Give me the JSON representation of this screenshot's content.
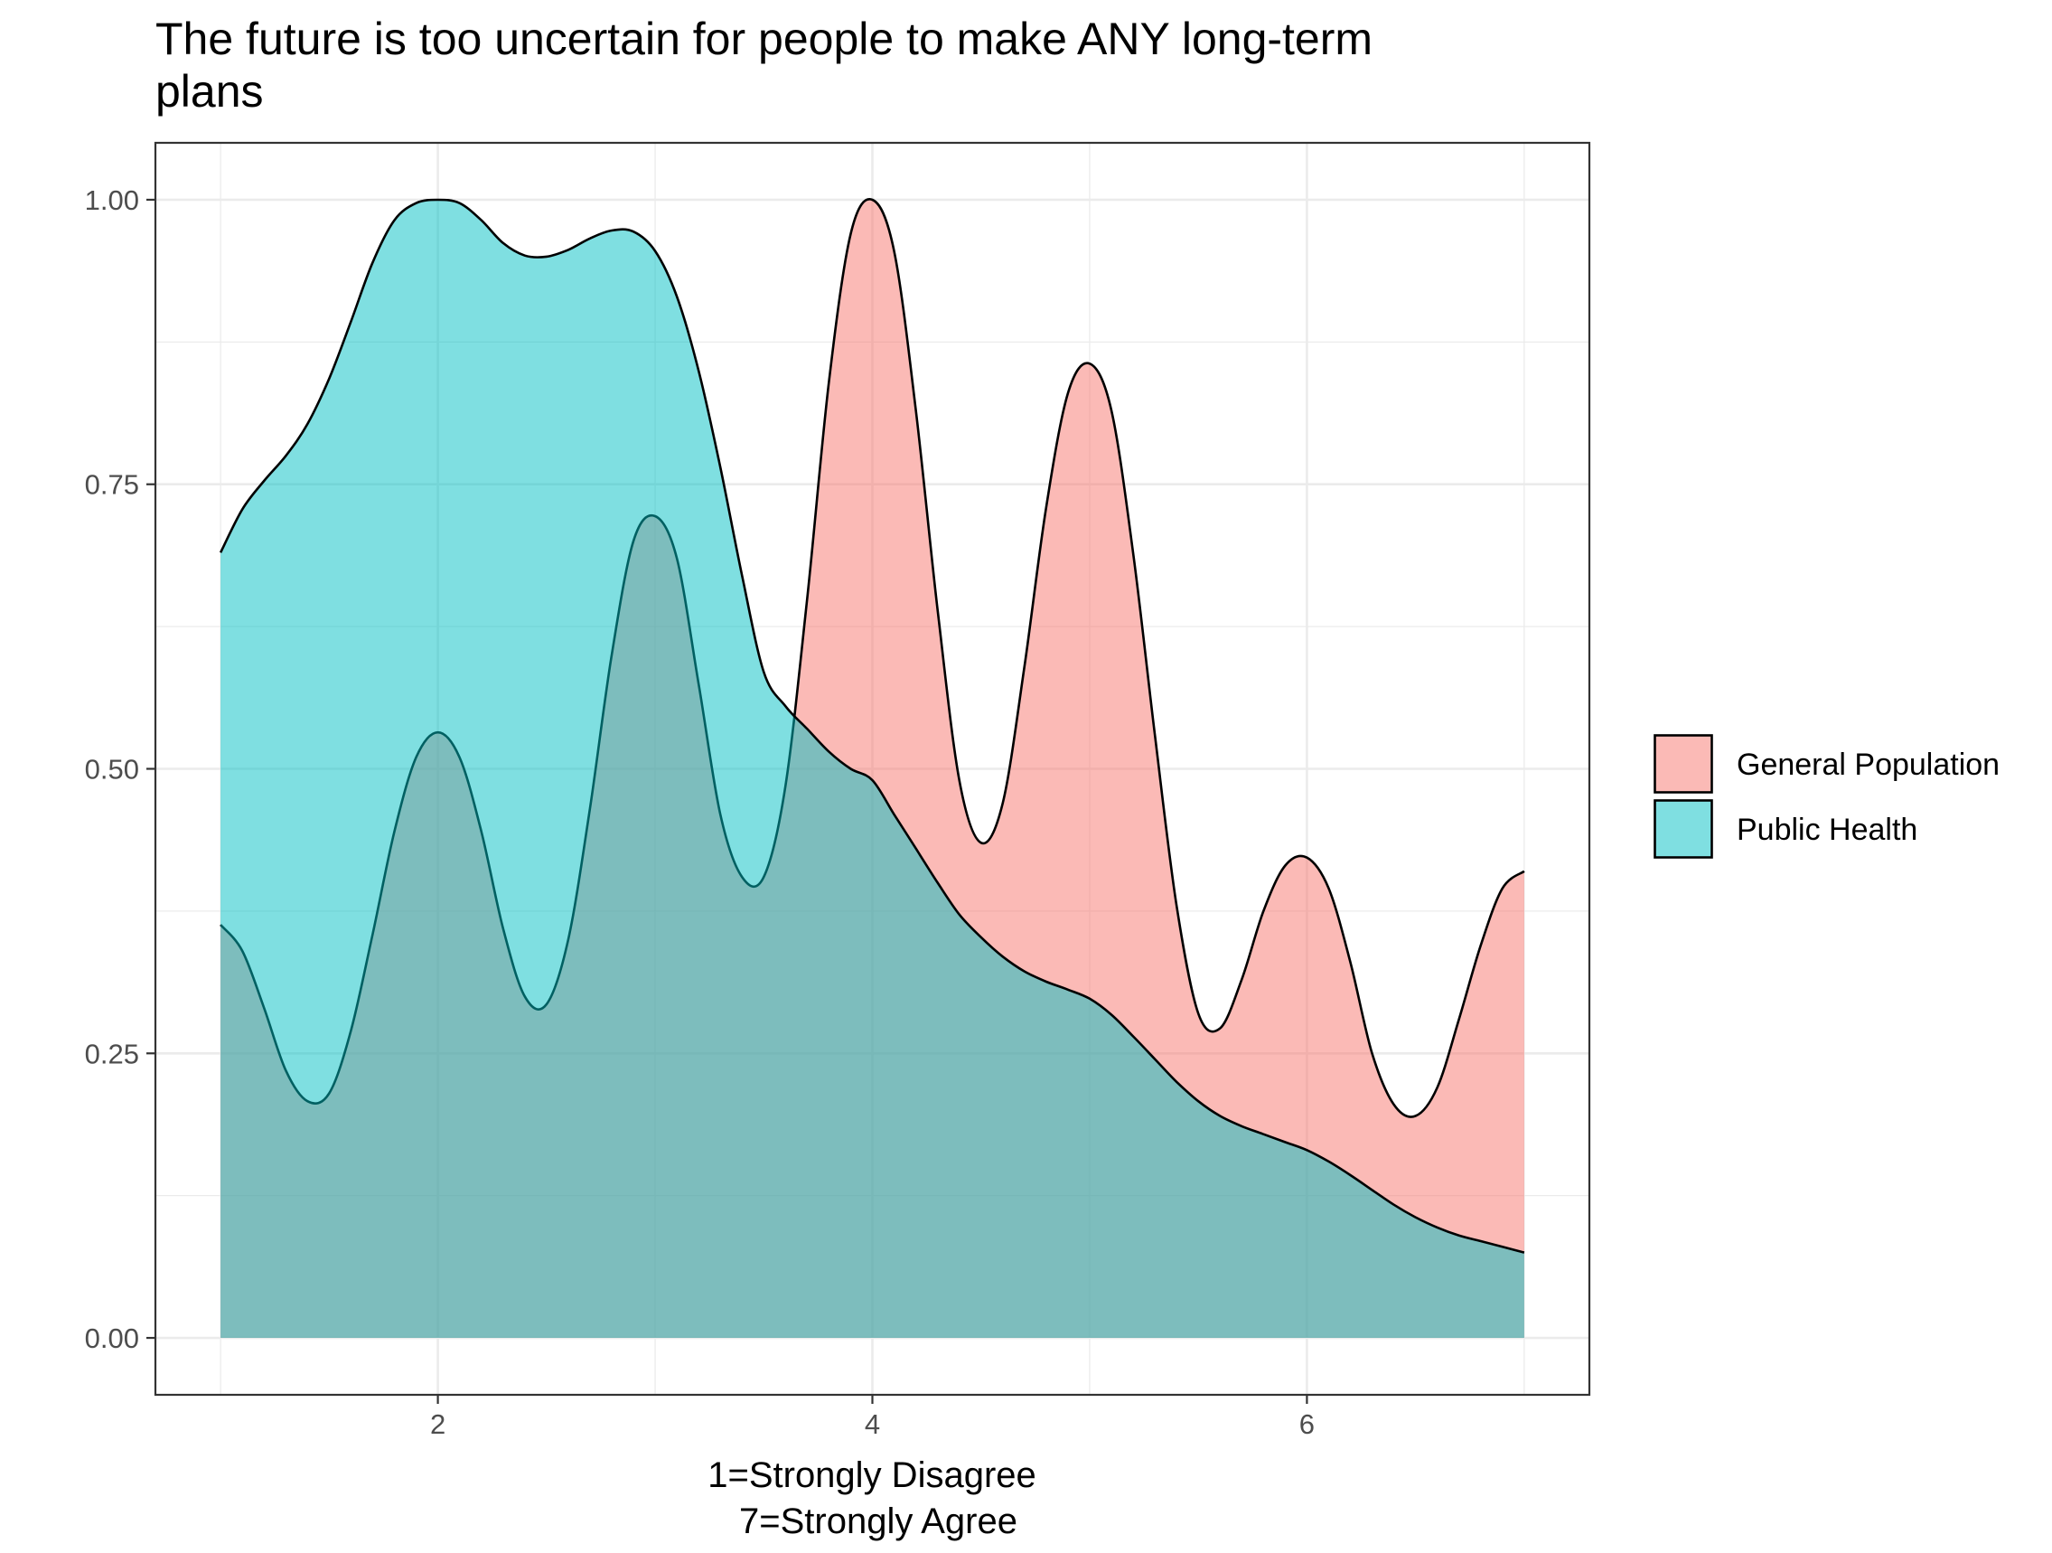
{
  "title": {
    "line1": "The future is too uncertain for people to make ANY long-term",
    "line2": "plans"
  },
  "chart_data": {
    "type": "area",
    "title": "The future is too uncertain for people to make ANY long-term plans",
    "xlabel_lines": [
      "1=Strongly Disagree",
      "7=Strongly Agree"
    ],
    "ylabel": "",
    "xlim": [
      0.7,
      7.3
    ],
    "ylim": [
      -0.05,
      1.05
    ],
    "x_ticks": [
      2,
      4,
      6
    ],
    "x_tick_labels": [
      "2",
      "4",
      "6"
    ],
    "y_ticks": [
      0,
      0.25,
      0.5,
      0.75,
      1.0
    ],
    "y_tick_labels": [
      "0.00",
      "0.25",
      "0.50",
      "0.75",
      "1.00"
    ],
    "grid": true,
    "legend_position": "right",
    "series": [
      {
        "name": "General Population",
        "color": "#F8766D",
        "points": [
          [
            1.0,
            0.363
          ],
          [
            1.1,
            0.34
          ],
          [
            1.2,
            0.29
          ],
          [
            1.3,
            0.235
          ],
          [
            1.4,
            0.208
          ],
          [
            1.5,
            0.215
          ],
          [
            1.6,
            0.27
          ],
          [
            1.7,
            0.355
          ],
          [
            1.8,
            0.445
          ],
          [
            1.9,
            0.51
          ],
          [
            2.0,
            0.532
          ],
          [
            2.1,
            0.51
          ],
          [
            2.2,
            0.445
          ],
          [
            2.3,
            0.36
          ],
          [
            2.4,
            0.3
          ],
          [
            2.5,
            0.293
          ],
          [
            2.6,
            0.35
          ],
          [
            2.7,
            0.465
          ],
          [
            2.8,
            0.6
          ],
          [
            2.9,
            0.7
          ],
          [
            3.0,
            0.722
          ],
          [
            3.1,
            0.685
          ],
          [
            3.2,
            0.575
          ],
          [
            3.3,
            0.46
          ],
          [
            3.4,
            0.405
          ],
          [
            3.5,
            0.405
          ],
          [
            3.6,
            0.485
          ],
          [
            3.7,
            0.65
          ],
          [
            3.8,
            0.84
          ],
          [
            3.9,
            0.97
          ],
          [
            4.0,
            1.0
          ],
          [
            4.1,
            0.955
          ],
          [
            4.2,
            0.815
          ],
          [
            4.3,
            0.64
          ],
          [
            4.4,
            0.49
          ],
          [
            4.5,
            0.435
          ],
          [
            4.6,
            0.47
          ],
          [
            4.7,
            0.59
          ],
          [
            4.8,
            0.73
          ],
          [
            4.9,
            0.83
          ],
          [
            5.0,
            0.856
          ],
          [
            5.1,
            0.815
          ],
          [
            5.2,
            0.69
          ],
          [
            5.3,
            0.53
          ],
          [
            5.4,
            0.38
          ],
          [
            5.5,
            0.285
          ],
          [
            5.6,
            0.272
          ],
          [
            5.7,
            0.315
          ],
          [
            5.8,
            0.375
          ],
          [
            5.9,
            0.415
          ],
          [
            6.0,
            0.422
          ],
          [
            6.1,
            0.395
          ],
          [
            6.2,
            0.33
          ],
          [
            6.3,
            0.25
          ],
          [
            6.4,
            0.205
          ],
          [
            6.5,
            0.195
          ],
          [
            6.6,
            0.22
          ],
          [
            6.7,
            0.28
          ],
          [
            6.8,
            0.345
          ],
          [
            6.9,
            0.395
          ],
          [
            7.0,
            0.41
          ]
        ]
      },
      {
        "name": "Public Health",
        "color": "#00BFC4",
        "points": [
          [
            1.0,
            0.69
          ],
          [
            1.1,
            0.728
          ],
          [
            1.2,
            0.753
          ],
          [
            1.3,
            0.775
          ],
          [
            1.4,
            0.803
          ],
          [
            1.5,
            0.843
          ],
          [
            1.6,
            0.893
          ],
          [
            1.7,
            0.945
          ],
          [
            1.8,
            0.982
          ],
          [
            1.9,
            0.997
          ],
          [
            2.0,
            1.0
          ],
          [
            2.1,
            0.997
          ],
          [
            2.2,
            0.982
          ],
          [
            2.3,
            0.962
          ],
          [
            2.4,
            0.951
          ],
          [
            2.5,
            0.95
          ],
          [
            2.6,
            0.956
          ],
          [
            2.7,
            0.966
          ],
          [
            2.8,
            0.973
          ],
          [
            2.9,
            0.972
          ],
          [
            3.0,
            0.955
          ],
          [
            3.1,
            0.915
          ],
          [
            3.2,
            0.85
          ],
          [
            3.3,
            0.765
          ],
          [
            3.4,
            0.67
          ],
          [
            3.5,
            0.585
          ],
          [
            3.6,
            0.555
          ],
          [
            3.7,
            0.535
          ],
          [
            3.8,
            0.515
          ],
          [
            3.9,
            0.5
          ],
          [
            4.0,
            0.49
          ],
          [
            4.1,
            0.46
          ],
          [
            4.2,
            0.43
          ],
          [
            4.3,
            0.4
          ],
          [
            4.4,
            0.372
          ],
          [
            4.5,
            0.352
          ],
          [
            4.6,
            0.335
          ],
          [
            4.7,
            0.322
          ],
          [
            4.8,
            0.313
          ],
          [
            4.9,
            0.306
          ],
          [
            5.0,
            0.298
          ],
          [
            5.1,
            0.284
          ],
          [
            5.2,
            0.265
          ],
          [
            5.3,
            0.245
          ],
          [
            5.4,
            0.225
          ],
          [
            5.5,
            0.208
          ],
          [
            5.6,
            0.195
          ],
          [
            5.7,
            0.186
          ],
          [
            5.8,
            0.179
          ],
          [
            5.9,
            0.172
          ],
          [
            6.0,
            0.165
          ],
          [
            6.1,
            0.155
          ],
          [
            6.2,
            0.143
          ],
          [
            6.3,
            0.13
          ],
          [
            6.4,
            0.117
          ],
          [
            6.5,
            0.106
          ],
          [
            6.6,
            0.097
          ],
          [
            6.7,
            0.09
          ],
          [
            6.8,
            0.085
          ],
          [
            6.9,
            0.08
          ],
          [
            7.0,
            0.075
          ]
        ]
      }
    ]
  }
}
